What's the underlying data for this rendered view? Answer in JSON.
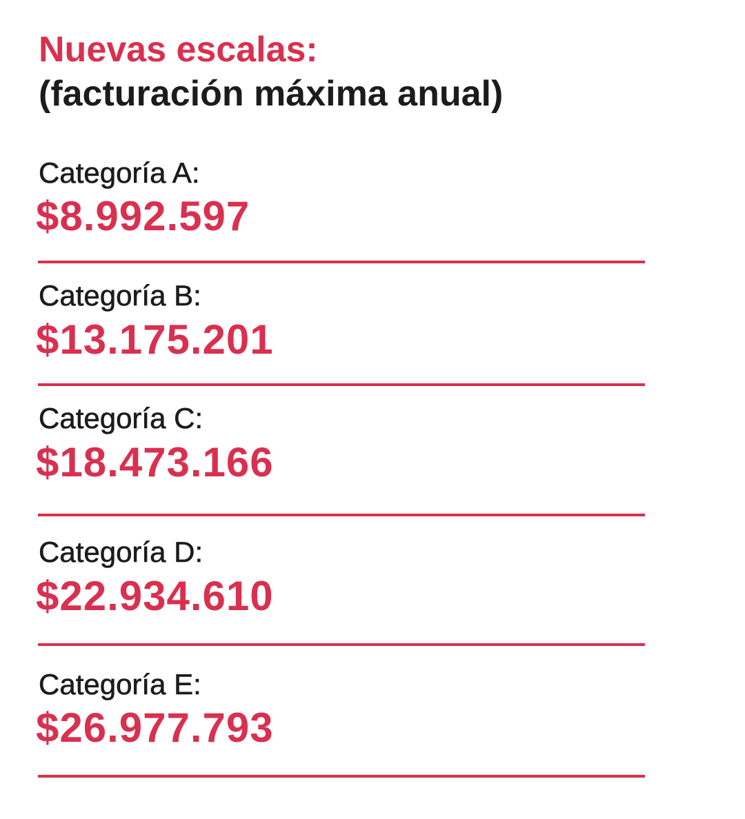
{
  "header": {
    "title": "Nuevas escalas:",
    "subtitle": "(facturación máxima anual)"
  },
  "items": [
    {
      "label": "Categoría A:",
      "value": "$8.992.597"
    },
    {
      "label": "Categoría B:",
      "value": "$13.175.201"
    },
    {
      "label": "Categoría C:",
      "value": "$18.473.166"
    },
    {
      "label": "Categoría D:",
      "value": "$22.934.610"
    },
    {
      "label": "Categoría E:",
      "value": "$26.977.793"
    }
  ]
}
